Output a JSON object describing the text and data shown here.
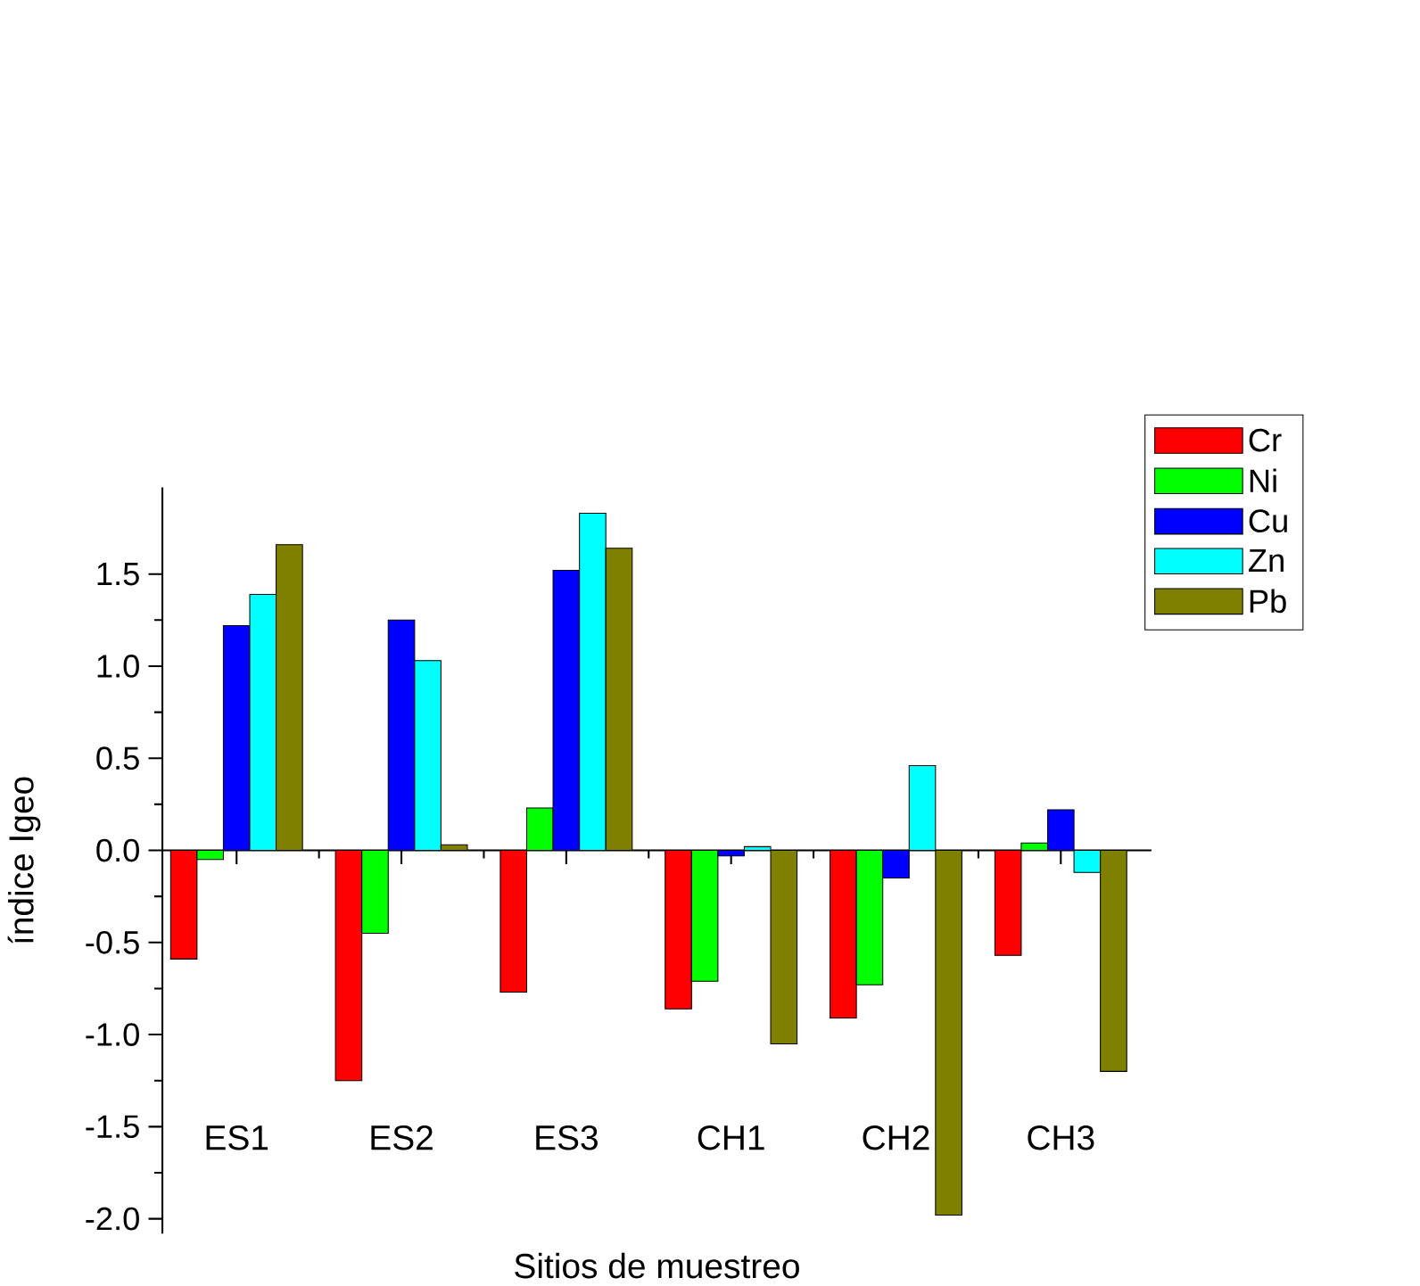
{
  "chart_data": {
    "type": "bar",
    "xlabel": "Sitios de muestreo",
    "ylabel": "índice Igeo",
    "categories": [
      "ES1",
      "ES2",
      "ES3",
      "CH1",
      "CH2",
      "CH3"
    ],
    "series": [
      {
        "name": "Cr",
        "color": "#ff0000",
        "values": [
          -0.59,
          -1.25,
          -0.77,
          -0.86,
          -0.91,
          -0.57
        ]
      },
      {
        "name": "Ni",
        "color": "#00ff00",
        "values": [
          -0.05,
          -0.45,
          0.23,
          -0.71,
          -0.73,
          0.04
        ]
      },
      {
        "name": "Cu",
        "color": "#0000ff",
        "values": [
          1.22,
          1.25,
          1.52,
          -0.03,
          -0.15,
          0.22
        ]
      },
      {
        "name": "Zn",
        "color": "#00ffff",
        "values": [
          1.39,
          1.03,
          1.83,
          0.02,
          0.46,
          -0.12
        ]
      },
      {
        "name": "Pb",
        "color": "#808000",
        "values": [
          1.66,
          0.03,
          1.64,
          -1.05,
          -1.98,
          -1.2
        ]
      }
    ],
    "ylim": [
      -2.08,
      1.97
    ],
    "yticks": [
      {
        "value": -2,
        "label": "-2.0"
      },
      -1.5,
      {
        "value": -1,
        "label": "-1.0"
      },
      -0.5,
      {
        "value": 0,
        "label": "0.0"
      },
      0.5,
      {
        "value": 1,
        "label": "1.0"
      },
      1.5
    ],
    "legend": "top right"
  }
}
